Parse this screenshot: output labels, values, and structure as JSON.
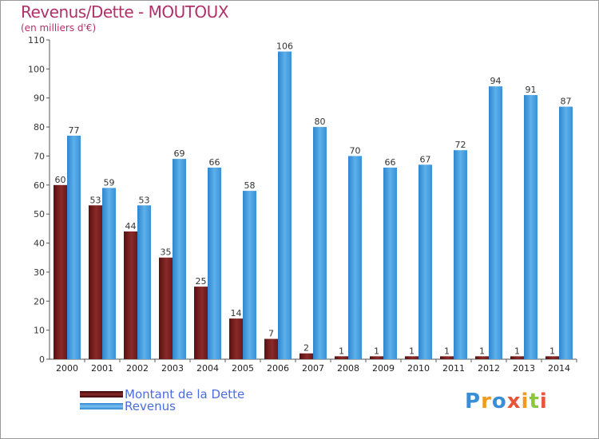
{
  "header": {
    "title": "Revenus/Dette - MOUTOUX",
    "subtitle": "(en milliers d'€)"
  },
  "legend": {
    "items": [
      {
        "label": "Montant de la Dette",
        "color": "#7a1a1a"
      },
      {
        "label": "Revenus",
        "color": "#4ea6e6"
      }
    ]
  },
  "logo": {
    "text": "Proxiti"
  },
  "chart_data": {
    "type": "bar",
    "categories": [
      "2000",
      "2001",
      "2002",
      "2003",
      "2004",
      "2005",
      "2006",
      "2007",
      "2008",
      "2009",
      "2010",
      "2011",
      "2012",
      "2013",
      "2014"
    ],
    "series": [
      {
        "name": "Montant de la Dette",
        "values": [
          60,
          53,
          44,
          35,
          25,
          14,
          7,
          2,
          1,
          1,
          1,
          1,
          1,
          1,
          1
        ]
      },
      {
        "name": "Revenus",
        "values": [
          77,
          59,
          53,
          69,
          66,
          58,
          106,
          80,
          70,
          66,
          67,
          72,
          94,
          91,
          87
        ]
      }
    ],
    "title": "Revenus/Dette - MOUTOUX",
    "ylabel": "(en milliers d'€)",
    "ylim": [
      0,
      110
    ],
    "yticks": [
      0,
      10,
      20,
      30,
      40,
      50,
      60,
      70,
      80,
      90,
      100,
      110
    ],
    "grid": false,
    "legend_position": "bottom-left"
  }
}
